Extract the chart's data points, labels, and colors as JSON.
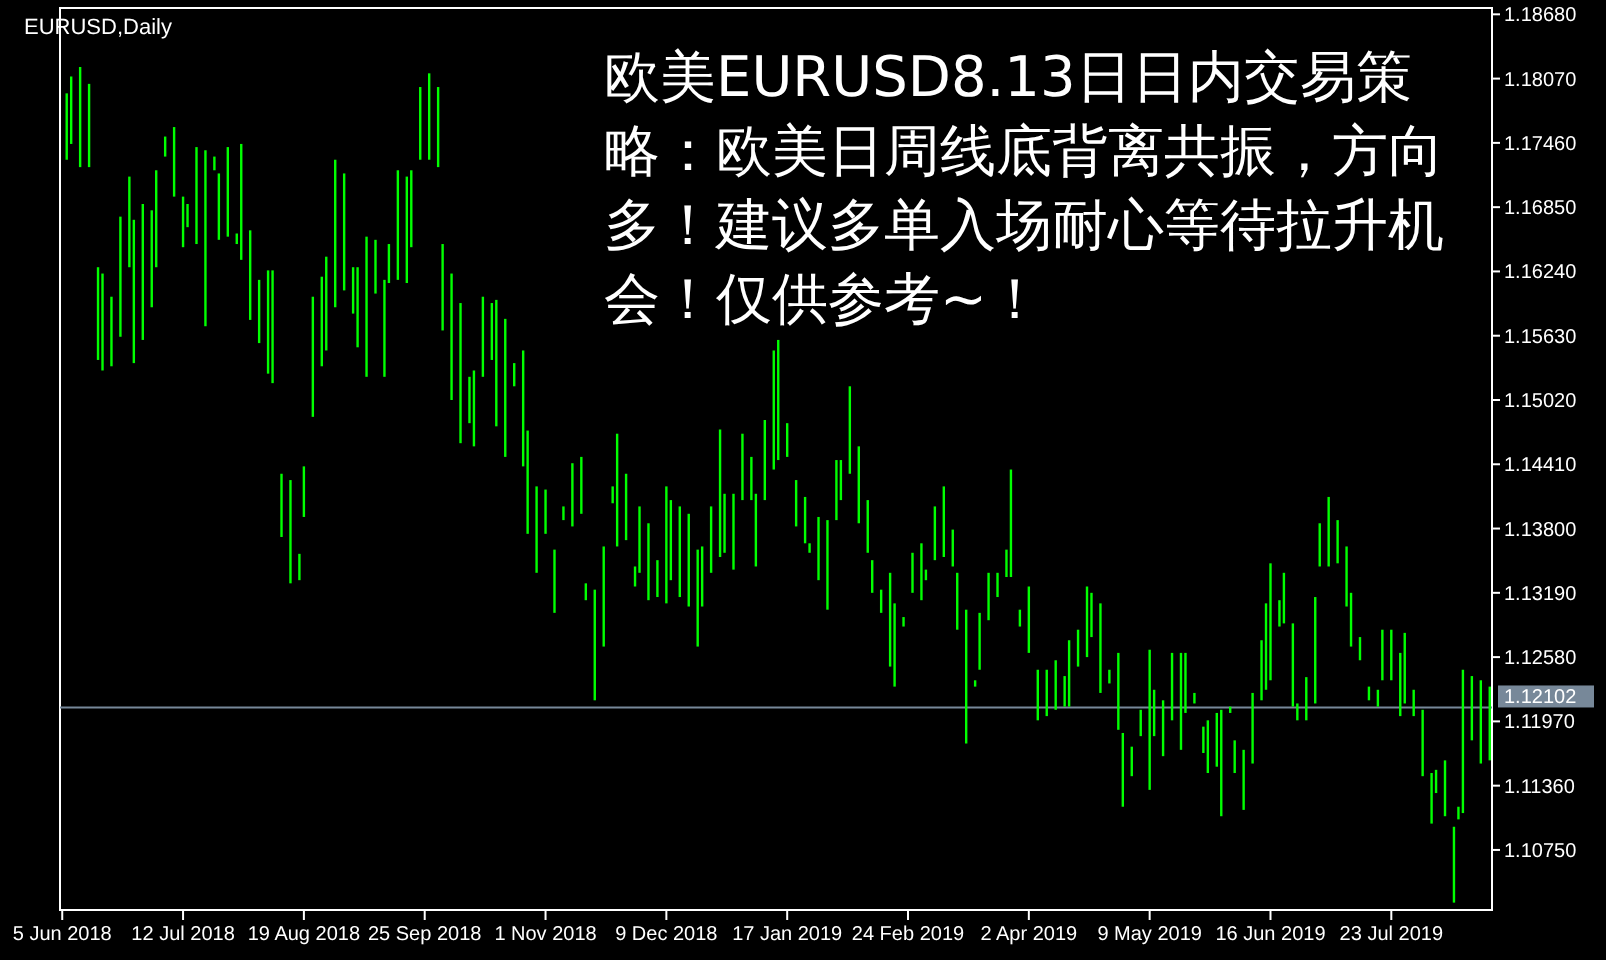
{
  "chart_data": {
    "type": "bar",
    "title": "EURUSD,Daily",
    "annotations": [
      "欧美EURUSD8.13日日内交易策略：欧美日周线底背离共振，方向多！建议多单入场耐心等待拉升机会！仅供参考~！"
    ],
    "color": "#00ff00",
    "categories": [
      "5 Jun 2018",
      null,
      null,
      null,
      null,
      null,
      null,
      null,
      null,
      null,
      null,
      null,
      null,
      null,
      null,
      null,
      null,
      null,
      null,
      null,
      null,
      null,
      null,
      null,
      null,
      null,
      null,
      "12 Jul 2018",
      null,
      null,
      null,
      null,
      null,
      null,
      null,
      null,
      null,
      null,
      null,
      null,
      null,
      null,
      null,
      null,
      null,
      null,
      null,
      null,
      null,
      null,
      null,
      null,
      null,
      null,
      "19 Aug 2018",
      null,
      null,
      null,
      null,
      null,
      null,
      null,
      null,
      null,
      null,
      null,
      null,
      null,
      null,
      null,
      null,
      null,
      null,
      null,
      null,
      null,
      null,
      null,
      null,
      null,
      null,
      "25 Sep 2018",
      null,
      null,
      null,
      null,
      null,
      null,
      null,
      null,
      null,
      null,
      null,
      null,
      null,
      null,
      null,
      null,
      null,
      null,
      null,
      null,
      null,
      null,
      null,
      null,
      null,
      null,
      "1 Nov 2018",
      null,
      null,
      null,
      null,
      null,
      null,
      null,
      null,
      null,
      null,
      null,
      null,
      null,
      null,
      null,
      null,
      null,
      null,
      null,
      null,
      null,
      null,
      null,
      null,
      null,
      null,
      "9 Dec 2018",
      null,
      null,
      null,
      null,
      null,
      null,
      null,
      null,
      null,
      null,
      null,
      null,
      null,
      null,
      null,
      null,
      null,
      null,
      null,
      null,
      null,
      null,
      null,
      null,
      null,
      null,
      "17 Jan 2019",
      null,
      null,
      null,
      null,
      null,
      null,
      null,
      null,
      null,
      null,
      null,
      null,
      null,
      null,
      null,
      null,
      null,
      null,
      null,
      null,
      null,
      null,
      null,
      null,
      null,
      null,
      "24 Feb 2019",
      null,
      null,
      null,
      null,
      null,
      null,
      null,
      null,
      null,
      null,
      null,
      null,
      null,
      null,
      null,
      null,
      null,
      null,
      null,
      null,
      null,
      null,
      null,
      null,
      null,
      null,
      "2 Apr 2019",
      null,
      null,
      null,
      null,
      null,
      null,
      null,
      null,
      null,
      null,
      null,
      null,
      null,
      null,
      null,
      null,
      null,
      null,
      null,
      null,
      null,
      null,
      null,
      null,
      null,
      null,
      "9 May 2019",
      null,
      null,
      null,
      null,
      null,
      null,
      null,
      null,
      null,
      null,
      null,
      null,
      null,
      null,
      null,
      null,
      null,
      null,
      null,
      null,
      null,
      null,
      null,
      null,
      null,
      null,
      "16 Jun 2019",
      null,
      null,
      null,
      null,
      null,
      null,
      null,
      null,
      null,
      null,
      null,
      null,
      null,
      null,
      null,
      null,
      null,
      null,
      null,
      null,
      null,
      null,
      null,
      null,
      null,
      null,
      "23 Jul 2019",
      null,
      null,
      null,
      null,
      null,
      null,
      null,
      null,
      null,
      null,
      null,
      null,
      null,
      null,
      null,
      null,
      null,
      null,
      null,
      null,
      null,
      null
    ],
    "ylim": [
      1.1018,
      1.1874
    ],
    "yticks": [
      {
        "value": 1.1868,
        "label": "1.18680"
      },
      {
        "value": 1.1807,
        "label": "1.18070"
      },
      {
        "value": 1.1746,
        "label": "1.17460"
      },
      {
        "value": 1.1685,
        "label": "1.16850"
      },
      {
        "value": 1.1624,
        "label": "1.16240"
      },
      {
        "value": 1.1563,
        "label": "1.15630"
      },
      {
        "value": 1.1502,
        "label": "1.15020"
      },
      {
        "value": 1.1441,
        "label": "1.14410"
      },
      {
        "value": 1.138,
        "label": "1.13800"
      },
      {
        "value": 1.1319,
        "label": "1.13190"
      },
      {
        "value": 1.1258,
        "label": "1.12580"
      },
      {
        "value": 1.1197,
        "label": "1.11970"
      },
      {
        "value": 1.1136,
        "label": "1.11360"
      },
      {
        "value": 1.1075,
        "label": "1.10750"
      }
    ],
    "ref_lines": [
      {
        "axis": "y",
        "value": 1.12102,
        "label": "1.12102",
        "color": "#778899"
      }
    ],
    "base": [
      null,
      1.173,
      1.1745,
      null,
      1.1723,
      null,
      1.1723,
      null,
      1.154,
      1.153,
      null,
      1.1534,
      null,
      1.1562,
      null,
      1.1628,
      1.1537,
      null,
      1.1559,
      null,
      1.159,
      1.1628,
      null,
      1.1733,
      null,
      1.1695,
      null,
      1.1647,
      1.1666,
      null,
      1.165,
      null,
      1.1572,
      null,
      1.172,
      1.1654,
      null,
      1.1657,
      null,
      1.165,
      1.1635,
      null,
      1.1578,
      null,
      1.1556,
      null,
      1.1527,
      1.1518,
      null,
      1.1372,
      null,
      1.1328,
      null,
      1.1331,
      1.1391,
      null,
      1.1486,
      null,
      1.1534,
      1.1549,
      null,
      1.159,
      null,
      1.1606,
      null,
      1.1584,
      1.1552,
      null,
      1.1524,
      null,
      1.1603,
      null,
      1.1524,
      1.1613,
      null,
      1.1616,
      null,
      1.1613,
      1.1647,
      null,
      1.173,
      null,
      1.173,
      null,
      1.1723,
      1.1568,
      null,
      1.1502,
      null,
      1.1461,
      null,
      1.148,
      1.1458,
      null,
      1.1524,
      null,
      1.154,
      1.1477,
      null,
      1.1448,
      null,
      1.1515,
      null,
      1.1439,
      1.1375,
      null,
      1.1338,
      null,
      1.1375,
      null,
      1.13,
      null,
      1.1388,
      null,
      1.1382,
      null,
      1.1394,
      1.1312,
      null,
      1.1217,
      null,
      1.1268,
      null,
      1.1404,
      1.1363,
      null,
      1.1369,
      null,
      1.1325,
      1.1338,
      null,
      1.1312,
      null,
      1.1315,
      null,
      1.1309,
      1.1331,
      null,
      1.1315,
      null,
      1.1306,
      null,
      1.1268,
      1.1306,
      null,
      1.1338,
      null,
      1.1353,
      1.1357,
      null,
      1.1341,
      null,
      1.1407,
      null,
      1.1407,
      1.1344,
      null,
      1.1407,
      null,
      1.1436,
      1.1445,
      null,
      1.1448,
      null,
      1.1382,
      null,
      1.1366,
      1.1357,
      null,
      1.1331,
      null,
      1.1303,
      null,
      1.1388,
      1.1407,
      null,
      1.1432,
      null,
      1.1385,
      null,
      1.1357,
      1.1319,
      null,
      1.13,
      null,
      1.1249,
      1.123,
      null,
      1.1287,
      null,
      1.1319,
      null,
      1.1312,
      1.1331,
      null,
      1.135,
      null,
      1.1353,
      null,
      1.1344,
      1.1284,
      null,
      1.1176,
      null,
      1.123,
      1.1246,
      null,
      1.1293,
      null,
      1.1315,
      null,
      1.1334,
      1.1334,
      null,
      1.1287,
      null,
      1.1262,
      null,
      1.1198,
      null,
      1.1202,
      null,
      1.1208,
      null,
      1.1211,
      1.1211,
      null,
      1.1249,
      null,
      1.1258,
      1.1277,
      null,
      1.1224,
      null,
      1.1233,
      null,
      1.1189,
      1.1116,
      null,
      1.1145,
      null,
      1.1183,
      null,
      1.1132,
      1.1183,
      null,
      1.1164,
      null,
      1.1198,
      null,
      1.117,
      1.1205,
      null,
      1.1214,
      null,
      1.1167,
      1.1148,
      null,
      1.1154,
      1.1107,
      null,
      1.1205,
      1.1148,
      null,
      1.1113,
      null,
      1.1157,
      null,
      1.1217,
      1.1227,
      1.1236,
      null,
      1.1287,
      1.129,
      null,
      1.1211,
      1.1198,
      null,
      1.1198,
      null,
      1.1214,
      1.1344,
      null,
      1.1344,
      null,
      1.1347,
      null,
      1.1306,
      1.1268,
      null,
      1.1255,
      null,
      1.1217,
      null,
      1.1211,
      1.1236,
      null,
      1.1236,
      null,
      1.1202,
      1.1214,
      null,
      1.1202,
      null,
      1.1145,
      null,
      1.11,
      1.1129,
      null,
      1.1107,
      null,
      1.1025,
      1.1104,
      1.111,
      null,
      1.1179,
      null,
      1.1157,
      null,
      1.116
    ],
    "values": [
      null,
      0.0063,
      0.0064,
      null,
      0.0095,
      null,
      0.0079,
      null,
      0.0088,
      0.0092,
      null,
      0.0066,
      null,
      0.0114,
      null,
      0.0086,
      0.0136,
      null,
      0.0129,
      null,
      0.0092,
      0.0092,
      null,
      0.0019,
      null,
      0.0066,
      null,
      0.0048,
      0.0022,
      null,
      0.0092,
      null,
      0.0167,
      null,
      0.0013,
      0.0063,
      null,
      0.0085,
      null,
      0.001,
      0.011,
      null,
      0.0085,
      null,
      0.006,
      null,
      0.0098,
      0.0107,
      null,
      0.006,
      null,
      0.0098,
      null,
      0.0025,
      0.0048,
      null,
      0.0114,
      null,
      0.0085,
      0.0089,
      null,
      0.014,
      null,
      0.0111,
      null,
      0.0044,
      0.0076,
      null,
      0.0133,
      null,
      0.0051,
      null,
      0.0092,
      0.0037,
      null,
      0.0104,
      null,
      0.0101,
      0.0073,
      null,
      0.0069,
      null,
      0.0082,
      null,
      0.0076,
      0.0082,
      null,
      0.012,
      null,
      0.0133,
      null,
      0.0044,
      0.0072,
      null,
      0.0076,
      null,
      0.0054,
      0.012,
      null,
      0.0131,
      null,
      0.0022,
      null,
      0.011,
      0.0098,
      null,
      0.0082,
      null,
      0.0042,
      null,
      0.006,
      null,
      0.0013,
      null,
      0.006,
      null,
      0.0054,
      0.0016,
      null,
      0.0105,
      null,
      0.0095,
      null,
      0.0016,
      0.0107,
      null,
      0.0063,
      null,
      0.0019,
      0.0063,
      null,
      0.0073,
      null,
      0.0035,
      null,
      0.0111,
      0.0076,
      null,
      0.0086,
      null,
      0.0088,
      null,
      0.0092,
      0.0057,
      null,
      0.0063,
      null,
      0.0121,
      0.0056,
      null,
      0.0072,
      null,
      0.0063,
      null,
      0.0041,
      0.0069,
      null,
      0.0076,
      null,
      0.0113,
      0.0114,
      null,
      0.0032,
      null,
      0.0044,
      null,
      0.0044,
      0.0009,
      null,
      0.006,
      null,
      0.0085,
      null,
      0.0057,
      0.0038,
      null,
      0.0083,
      null,
      0.0073,
      null,
      0.005,
      0.0031,
      null,
      0.0022,
      null,
      0.0089,
      0.0079,
      null,
      0.0009,
      null,
      0.0038,
      null,
      0.0054,
      0.001,
      null,
      0.0051,
      null,
      0.0067,
      null,
      0.0035,
      0.0054,
      null,
      0.0127,
      null,
      0.0006,
      0.0054,
      null,
      0.0045,
      null,
      0.0023,
      null,
      0.0026,
      0.0102,
      null,
      0.0016,
      null,
      0.0063,
      null,
      0.0048,
      null,
      0.0044,
      null,
      0.0047,
      null,
      0.0029,
      0.0063,
      null,
      0.0035,
      null,
      0.0067,
      0.0042,
      null,
      0.0085,
      null,
      0.0013,
      null,
      0.0073,
      0.007,
      null,
      0.0028,
      null,
      0.0025,
      null,
      0.0133,
      0.0044,
      null,
      0.0053,
      null,
      0.0064,
      null,
      0.0092,
      0.0057,
      null,
      0.001,
      null,
      0.0025,
      0.005,
      null,
      0.0051,
      0.0101,
      null,
      0.0006,
      0.0031,
      null,
      0.0057,
      null,
      0.0067,
      null,
      0.0057,
      0.0082,
      0.0111,
      null,
      0.0025,
      0.0048,
      null,
      0.0079,
      0.0016,
      null,
      0.0041,
      null,
      0.0101,
      0.0041,
      null,
      0.0066,
      null,
      0.0041,
      null,
      0.0057,
      0.0051,
      null,
      0.0022,
      null,
      0.0013,
      null,
      0.0016,
      0.0048,
      null,
      0.0048,
      null,
      0.006,
      0.0067,
      null,
      0.0025,
      null,
      0.0063,
      null,
      0.0048,
      0.0022,
      null,
      0.0053,
      null,
      0.0072,
      0.0012,
      0.0136,
      null,
      0.0061,
      null,
      0.0079,
      null,
      0.007
    ]
  }
}
